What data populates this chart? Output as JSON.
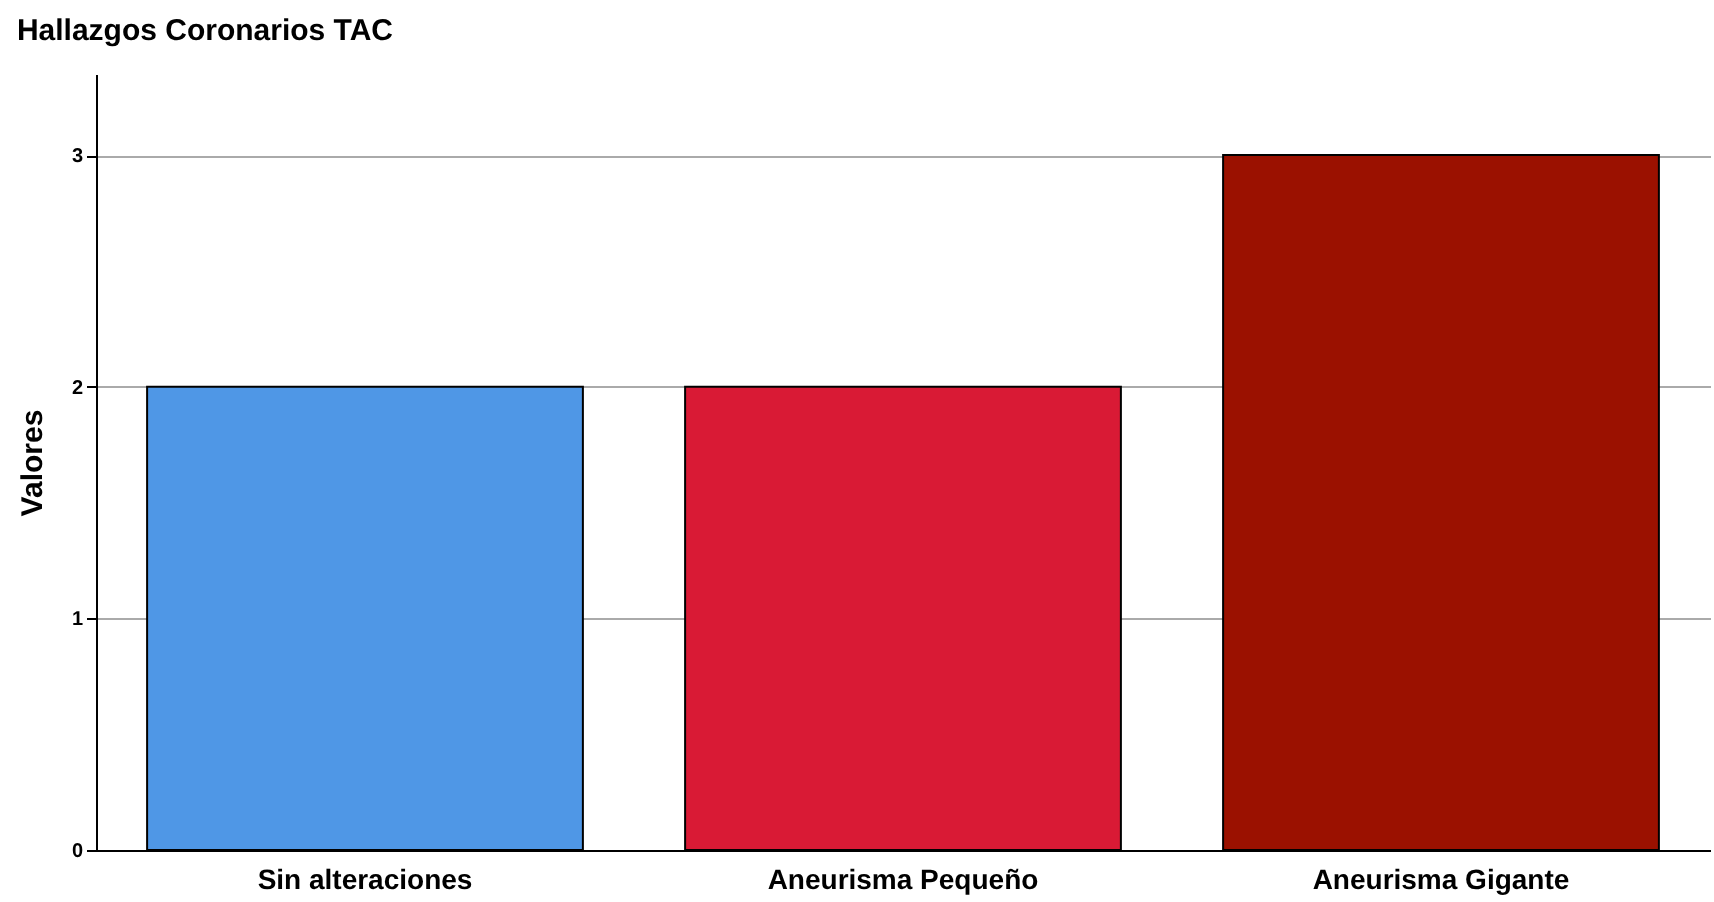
{
  "chart_data": {
    "type": "bar",
    "title": "Hallazgos Coronarios TAC",
    "ylabel": "Valores",
    "categories": [
      "Sin alteraciones",
      "Aneurisma Pequeño",
      "Aneurisma Gigante"
    ],
    "values": [
      2,
      2,
      3
    ],
    "colors": [
      "#4f97e6",
      "#d91a35",
      "#9b1100"
    ],
    "ylim": [
      0,
      3.35
    ],
    "yticks": [
      0,
      1,
      2,
      3
    ],
    "grid": "y",
    "legend": false
  }
}
